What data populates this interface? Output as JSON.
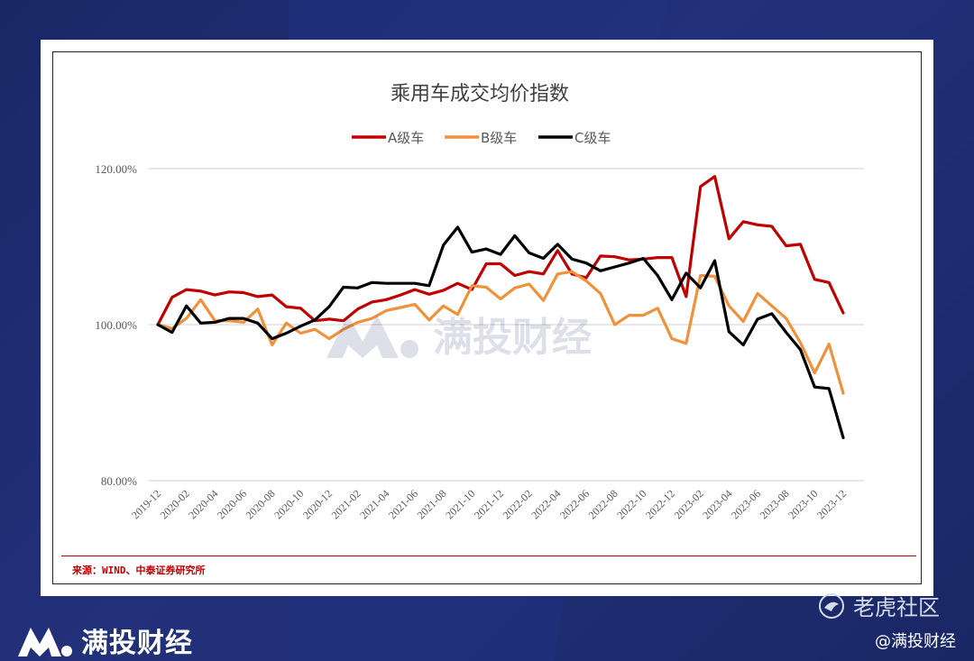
{
  "chart_data": {
    "type": "line",
    "title": "乘用车成交均价指数",
    "source": "来源：WIND、中泰证券研究所",
    "ylim": [
      80,
      120
    ],
    "y_ticks": [
      "80.00%",
      "100.00%",
      "120.00%"
    ],
    "y_tick_values": [
      80,
      100,
      120
    ],
    "grid": "horizontal",
    "legend_position": "top-center",
    "categories": [
      "2019-12",
      "2020-01",
      "2020-02",
      "2020-03",
      "2020-04",
      "2020-05",
      "2020-06",
      "2020-07",
      "2020-08",
      "2020-09",
      "2020-10",
      "2020-11",
      "2020-12",
      "2021-01",
      "2021-02",
      "2021-03",
      "2021-04",
      "2021-05",
      "2021-06",
      "2021-07",
      "2021-08",
      "2021-09",
      "2021-10",
      "2021-11",
      "2021-12",
      "2022-01",
      "2022-02",
      "2022-03",
      "2022-04",
      "2022-05",
      "2022-06",
      "2022-07",
      "2022-08",
      "2022-09",
      "2022-10",
      "2022-11",
      "2022-12",
      "2023-01",
      "2023-02",
      "2023-03",
      "2023-04",
      "2023-05",
      "2023-06",
      "2023-07",
      "2023-08",
      "2023-09",
      "2023-10",
      "2023-11",
      "2023-12"
    ],
    "x_tick_labels": [
      "2019-12",
      "2020-02",
      "2020-04",
      "2020-06",
      "2020-08",
      "2020-10",
      "2020-12",
      "2021-02",
      "2021-04",
      "2021-06",
      "2021-08",
      "2021-10",
      "2021-12",
      "2022-02",
      "2022-04",
      "2022-06",
      "2022-08",
      "2022-10",
      "2022-12",
      "2023-02",
      "2023-04",
      "2023-06",
      "2023-08",
      "2023-10",
      "2023-12"
    ],
    "series": [
      {
        "name": "A级车",
        "color": "#c00000",
        "values": [
          100,
          103.5,
          104.5,
          104.3,
          103.8,
          104.2,
          104.1,
          103.6,
          103.8,
          102.3,
          102.1,
          100.5,
          100.7,
          100.5,
          102.0,
          102.9,
          103.2,
          103.8,
          104.5,
          103.9,
          104.4,
          105.3,
          104.5,
          107.8,
          107.8,
          106.3,
          106.8,
          106.5,
          109.5,
          106.5,
          106.0,
          108.8,
          108.7,
          108.3,
          108.4,
          108.6,
          108.6,
          103.6,
          117.7,
          119.0,
          111.0,
          113.2,
          112.8,
          112.6,
          110.1,
          110.3,
          105.8,
          105.4,
          101.5
        ]
      },
      {
        "name": "B级车",
        "color": "#f0913c",
        "values": [
          100,
          99.5,
          100.8,
          103.2,
          100.5,
          100.5,
          100.3,
          102.0,
          97.4,
          100.2,
          98.9,
          99.4,
          98.2,
          99.4,
          100.3,
          100.8,
          101.8,
          102.2,
          102.6,
          100.6,
          102.4,
          101.3,
          105.0,
          104.8,
          103.3,
          104.7,
          105.2,
          103.1,
          106.5,
          106.8,
          105.6,
          104.0,
          100.0,
          101.2,
          101.2,
          102.1,
          98.2,
          97.6,
          106.3,
          106.2,
          102.4,
          100.4,
          104.0,
          102.4,
          100.8,
          97.7,
          93.8,
          97.5,
          91.2
        ]
      },
      {
        "name": "C级车",
        "color": "#000000",
        "values": [
          100,
          99.0,
          102.4,
          100.2,
          100.3,
          100.8,
          100.8,
          100.2,
          98.2,
          98.9,
          99.8,
          100.6,
          102.3,
          104.8,
          104.7,
          105.4,
          105.3,
          105.3,
          105.3,
          105.0,
          110.2,
          112.5,
          109.3,
          109.7,
          109.0,
          111.4,
          109.2,
          108.5,
          110.3,
          108.4,
          107.9,
          106.9,
          107.4,
          107.9,
          108.5,
          106.3,
          103.2,
          106.6,
          104.7,
          108.2,
          99.1,
          97.4,
          100.7,
          101.4,
          99.0,
          96.8,
          92.0,
          91.8,
          85.5
        ]
      }
    ]
  },
  "brand": {
    "name": "满投财经"
  },
  "watermark": {
    "text": "满投财经"
  },
  "community": {
    "name": "老虎社区",
    "handle": "@满投财经"
  }
}
